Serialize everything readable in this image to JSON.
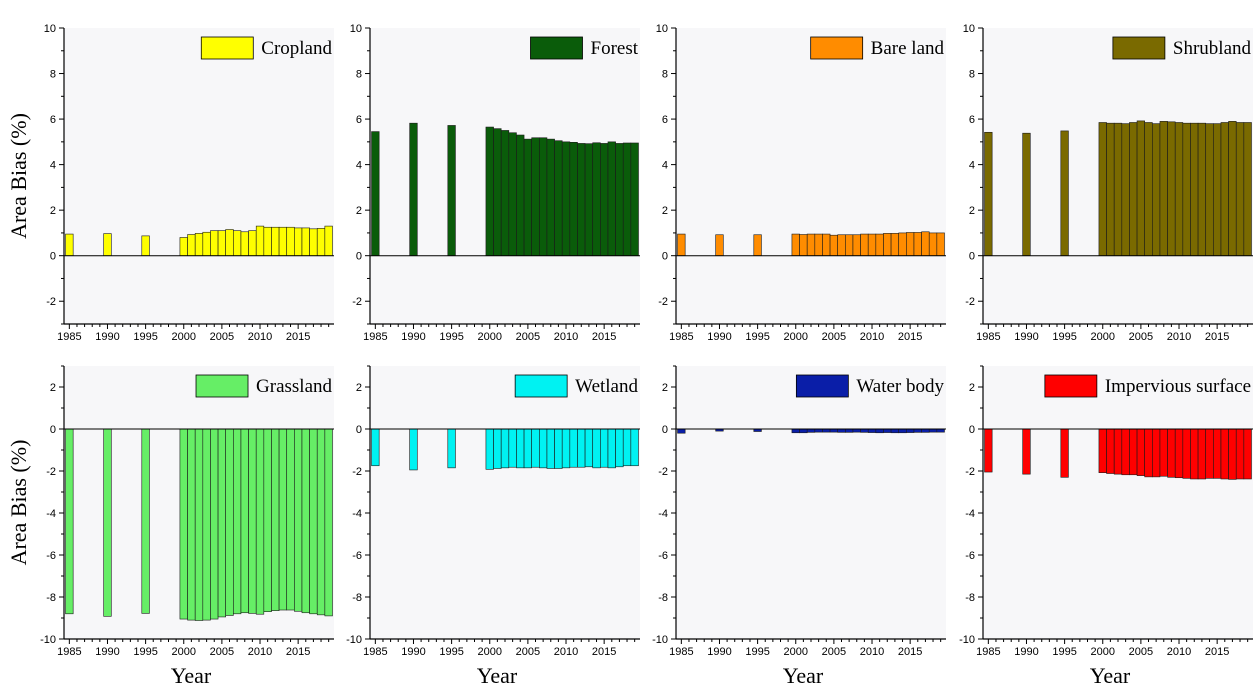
{
  "figure": {
    "x_axis_title": "Year",
    "y_axis_title": "Area Bias (%)"
  },
  "chart_data": [
    {
      "type": "bar",
      "title": "",
      "series": [
        {
          "name": "Cropland",
          "color": "#ffff00",
          "values": [
            0.95,
            0.97,
            0.87,
            0.8,
            0.93,
            0.98,
            1.03,
            1.1,
            1.1,
            1.15,
            1.1,
            1.05,
            1.1,
            1.3,
            1.25,
            1.25,
            1.25,
            1.25,
            1.22,
            1.22,
            1.18,
            1.2,
            1.3
          ]
        }
      ],
      "x": [
        1985,
        1990,
        1995,
        2000,
        2001,
        2002,
        2003,
        2004,
        2005,
        2006,
        2007,
        2008,
        2009,
        2010,
        2011,
        2012,
        2013,
        2014,
        2015,
        2016,
        2017,
        2018,
        2019
      ],
      "xticks": [
        "1985",
        "1990",
        "1995",
        "2000",
        "2005",
        "2010",
        "2015"
      ],
      "yticks": [
        "-2",
        "0",
        "2",
        "4",
        "6",
        "8",
        "10"
      ],
      "ylim": [
        -3,
        10
      ],
      "xlabel": "",
      "ylabel": "Area Bias (%)",
      "legend": "top-right"
    },
    {
      "type": "bar",
      "title": "",
      "series": [
        {
          "name": "Forest",
          "color": "#0a5c0a",
          "values": [
            5.45,
            5.82,
            5.72,
            5.65,
            5.58,
            5.5,
            5.4,
            5.3,
            5.12,
            5.18,
            5.18,
            5.12,
            5.05,
            5.0,
            4.98,
            4.93,
            4.92,
            4.96,
            4.93,
            5.0,
            4.93,
            4.95,
            4.95
          ]
        }
      ],
      "x": [
        1985,
        1990,
        1995,
        2000,
        2001,
        2002,
        2003,
        2004,
        2005,
        2006,
        2007,
        2008,
        2009,
        2010,
        2011,
        2012,
        2013,
        2014,
        2015,
        2016,
        2017,
        2018,
        2019
      ],
      "xticks": [
        "1985",
        "1990",
        "1995",
        "2000",
        "2005",
        "2010",
        "2015"
      ],
      "yticks": [
        "-2",
        "0",
        "2",
        "4",
        "6",
        "8",
        "10"
      ],
      "ylim": [
        -3,
        10
      ],
      "xlabel": "",
      "ylabel": "",
      "legend": "top-right"
    },
    {
      "type": "bar",
      "title": "",
      "series": [
        {
          "name": "Bare land",
          "color": "#ff8c00",
          "values": [
            0.95,
            0.92,
            0.92,
            0.95,
            0.93,
            0.95,
            0.95,
            0.95,
            0.9,
            0.92,
            0.92,
            0.92,
            0.95,
            0.95,
            0.95,
            0.98,
            0.98,
            1.0,
            1.02,
            1.02,
            1.05,
            1.0,
            1.0
          ]
        }
      ],
      "x": [
        1985,
        1990,
        1995,
        2000,
        2001,
        2002,
        2003,
        2004,
        2005,
        2006,
        2007,
        2008,
        2009,
        2010,
        2011,
        2012,
        2013,
        2014,
        2015,
        2016,
        2017,
        2018,
        2019
      ],
      "xticks": [
        "1985",
        "1990",
        "1995",
        "2000",
        "2005",
        "2010",
        "2015"
      ],
      "yticks": [
        "-2",
        "0",
        "2",
        "4",
        "6",
        "8",
        "10"
      ],
      "ylim": [
        -3,
        10
      ],
      "xlabel": "",
      "ylabel": "",
      "legend": "top-right"
    },
    {
      "type": "bar",
      "title": "",
      "series": [
        {
          "name": "Shrubland",
          "color": "#7a6a00",
          "values": [
            5.42,
            5.38,
            5.48,
            5.85,
            5.82,
            5.82,
            5.8,
            5.85,
            5.92,
            5.85,
            5.8,
            5.9,
            5.88,
            5.85,
            5.82,
            5.82,
            5.82,
            5.8,
            5.8,
            5.85,
            5.9,
            5.85,
            5.85
          ]
        }
      ],
      "x": [
        1985,
        1990,
        1995,
        2000,
        2001,
        2002,
        2003,
        2004,
        2005,
        2006,
        2007,
        2008,
        2009,
        2010,
        2011,
        2012,
        2013,
        2014,
        2015,
        2016,
        2017,
        2018,
        2019
      ],
      "xticks": [
        "1985",
        "1990",
        "1995",
        "2000",
        "2005",
        "2010",
        "2015"
      ],
      "yticks": [
        "-2",
        "0",
        "2",
        "4",
        "6",
        "8",
        "10"
      ],
      "ylim": [
        -3,
        10
      ],
      "xlabel": "",
      "ylabel": "",
      "legend": "top-right"
    },
    {
      "type": "bar",
      "title": "",
      "series": [
        {
          "name": "Grassland",
          "color": "#66ee66",
          "values": [
            -8.8,
            -8.92,
            -8.78,
            -9.05,
            -9.1,
            -9.12,
            -9.1,
            -9.05,
            -8.95,
            -8.88,
            -8.8,
            -8.75,
            -8.78,
            -8.82,
            -8.7,
            -8.65,
            -8.62,
            -8.62,
            -8.68,
            -8.75,
            -8.8,
            -8.85,
            -8.9
          ]
        }
      ],
      "x": [
        1985,
        1990,
        1995,
        2000,
        2001,
        2002,
        2003,
        2004,
        2005,
        2006,
        2007,
        2008,
        2009,
        2010,
        2011,
        2012,
        2013,
        2014,
        2015,
        2016,
        2017,
        2018,
        2019
      ],
      "xticks": [
        "1985",
        "1990",
        "1995",
        "2000",
        "2005",
        "2010",
        "2015"
      ],
      "yticks": [
        "-10",
        "-8",
        "-6",
        "-4",
        "-2",
        "0",
        "2"
      ],
      "ylim": [
        -10,
        3
      ],
      "xlabel": "Year",
      "ylabel": "Area Bias (%)",
      "legend": "top-right"
    },
    {
      "type": "bar",
      "title": "",
      "series": [
        {
          "name": "Wetland",
          "color": "#00f2f2",
          "values": [
            -1.75,
            -1.95,
            -1.85,
            -1.92,
            -1.88,
            -1.85,
            -1.82,
            -1.85,
            -1.85,
            -1.82,
            -1.85,
            -1.88,
            -1.88,
            -1.85,
            -1.82,
            -1.82,
            -1.8,
            -1.85,
            -1.82,
            -1.85,
            -1.8,
            -1.75,
            -1.75
          ]
        }
      ],
      "x": [
        1985,
        1990,
        1995,
        2000,
        2001,
        2002,
        2003,
        2004,
        2005,
        2006,
        2007,
        2008,
        2009,
        2010,
        2011,
        2012,
        2013,
        2014,
        2015,
        2016,
        2017,
        2018,
        2019
      ],
      "xticks": [
        "1985",
        "1990",
        "1995",
        "2000",
        "2005",
        "2010",
        "2015"
      ],
      "yticks": [
        "-10",
        "-8",
        "-6",
        "-4",
        "-2",
        "0",
        "2"
      ],
      "ylim": [
        -10,
        3
      ],
      "xlabel": "Year",
      "ylabel": "",
      "legend": "top-right"
    },
    {
      "type": "bar",
      "title": "",
      "series": [
        {
          "name": "Water body",
          "color": "#0a1ea8",
          "values": [
            -0.2,
            -0.1,
            -0.12,
            -0.18,
            -0.18,
            -0.16,
            -0.15,
            -0.15,
            -0.15,
            -0.16,
            -0.16,
            -0.15,
            -0.16,
            -0.17,
            -0.18,
            -0.17,
            -0.18,
            -0.18,
            -0.17,
            -0.16,
            -0.16,
            -0.15,
            -0.15
          ]
        }
      ],
      "x": [
        1985,
        1990,
        1995,
        2000,
        2001,
        2002,
        2003,
        2004,
        2005,
        2006,
        2007,
        2008,
        2009,
        2010,
        2011,
        2012,
        2013,
        2014,
        2015,
        2016,
        2017,
        2018,
        2019
      ],
      "xticks": [
        "1985",
        "1990",
        "1995",
        "2000",
        "2005",
        "2010",
        "2015"
      ],
      "yticks": [
        "-10",
        "-8",
        "-6",
        "-4",
        "-2",
        "0",
        "2"
      ],
      "ylim": [
        -10,
        3
      ],
      "xlabel": "Year",
      "ylabel": "",
      "legend": "top-right"
    },
    {
      "type": "bar",
      "title": "",
      "series": [
        {
          "name": "Impervious surface",
          "color": "#ff0000",
          "values": [
            -2.05,
            -2.15,
            -2.3,
            -2.08,
            -2.12,
            -2.15,
            -2.18,
            -2.18,
            -2.22,
            -2.28,
            -2.28,
            -2.25,
            -2.3,
            -2.32,
            -2.35,
            -2.38,
            -2.38,
            -2.35,
            -2.35,
            -2.38,
            -2.4,
            -2.38,
            -2.38
          ]
        }
      ],
      "x": [
        1985,
        1990,
        1995,
        2000,
        2001,
        2002,
        2003,
        2004,
        2005,
        2006,
        2007,
        2008,
        2009,
        2010,
        2011,
        2012,
        2013,
        2014,
        2015,
        2016,
        2017,
        2018,
        2019
      ],
      "xticks": [
        "1985",
        "1990",
        "1995",
        "2000",
        "2005",
        "2010",
        "2015"
      ],
      "yticks": [
        "-10",
        "-8",
        "-6",
        "-4",
        "-2",
        "0",
        "2"
      ],
      "ylim": [
        -10,
        3
      ],
      "xlabel": "Year",
      "ylabel": "",
      "legend": "top-right"
    }
  ]
}
